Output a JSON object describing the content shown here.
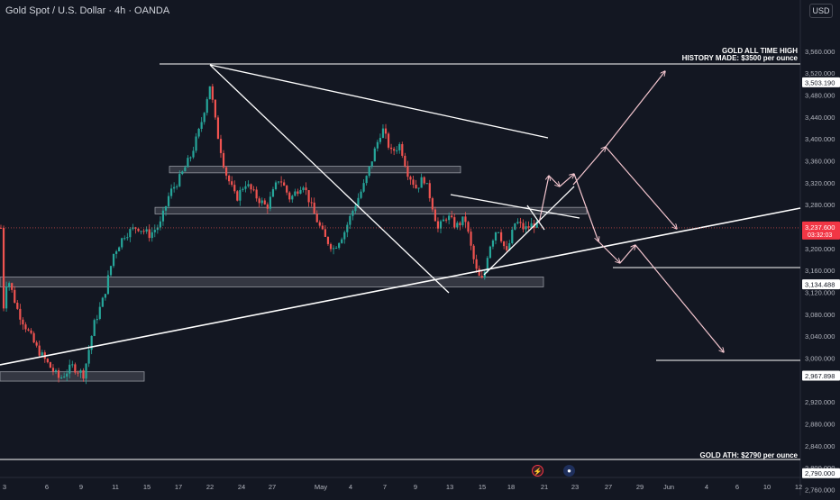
{
  "header": {
    "title": "Gold Spot / U.S. Dollar · 4h · OANDA"
  },
  "currency_button": {
    "label": "USD"
  },
  "colors": {
    "background": "#131722",
    "up": "#26a69a",
    "down": "#ef5350",
    "drawing": "#ffffff",
    "projection": "#f4c6cf",
    "zone_fill": "#5d606b"
  },
  "annotations": {
    "ath_line1": "GOLD ALL TIME HIGH",
    "ath_line2": "HISTORY MADE: $3500 per ounce",
    "ath_old": "GOLD ATH: $2790 per ounce"
  },
  "bottom_icons": [
    {
      "name": "lightning-icon",
      "glyph": "⚡"
    },
    {
      "name": "flag-icon",
      "glyph": "●"
    }
  ],
  "chart_data": {
    "type": "candlestick",
    "title": "Gold Spot / U.S. Dollar · 4h · OANDA",
    "ylim": [
      2760,
      3570
    ],
    "y_ticks": [
      "3,560.000",
      "3,520.000",
      "3,480.000",
      "3,440.000",
      "3,400.000",
      "3,360.000",
      "3,320.000",
      "3,280.000",
      "3,200.000",
      "3,160.000",
      "3,120.000",
      "3,080.000",
      "3,040.000",
      "3,000.000",
      "2,920.000",
      "2,880.000",
      "2,840.000",
      "2,800.000",
      "2,760.000"
    ],
    "x_ticks": [
      "3",
      "6",
      "9",
      "11",
      "15",
      "17",
      "22",
      "24",
      "27",
      "May",
      "4",
      "7",
      "9",
      "13",
      "15",
      "18",
      "21",
      "23",
      "27",
      "29",
      "Jun",
      "4",
      "6",
      "10",
      "12"
    ],
    "price_labels": [
      {
        "text": "3,503.190",
        "value": 3503.19,
        "style": "line"
      },
      {
        "text": "3,237.600",
        "sub": "03:32:03",
        "value": 3237.6,
        "style": "current"
      },
      {
        "text": "3,134.488",
        "value": 3134.488,
        "style": "line"
      },
      {
        "text": "2,967.898",
        "value": 2967.898,
        "style": "line"
      },
      {
        "text": "2,790.000",
        "value": 2790.0,
        "style": "line"
      }
    ],
    "path_anchors": [
      [
        3,
        3080
      ],
      [
        8,
        3150
      ],
      [
        20,
        3085
      ],
      [
        40,
        3020
      ],
      [
        55,
        2985
      ],
      [
        66,
        2962
      ],
      [
        80,
        2985
      ],
      [
        93,
        2970
      ],
      [
        104,
        3060
      ],
      [
        115,
        3110
      ],
      [
        126,
        3190
      ],
      [
        138,
        3225
      ],
      [
        152,
        3240
      ],
      [
        166,
        3225
      ],
      [
        178,
        3245
      ],
      [
        188,
        3300
      ],
      [
        200,
        3330
      ],
      [
        212,
        3370
      ],
      [
        222,
        3420
      ],
      [
        233,
        3500
      ],
      [
        240,
        3420
      ],
      [
        250,
        3340
      ],
      [
        262,
        3290
      ],
      [
        272,
        3320
      ],
      [
        284,
        3295
      ],
      [
        296,
        3275
      ],
      [
        310,
        3330
      ],
      [
        322,
        3290
      ],
      [
        336,
        3320
      ],
      [
        348,
        3265
      ],
      [
        360,
        3220
      ],
      [
        370,
        3200
      ],
      [
        382,
        3230
      ],
      [
        394,
        3280
      ],
      [
        405,
        3320
      ],
      [
        416,
        3380
      ],
      [
        424,
        3420
      ],
      [
        434,
        3375
      ],
      [
        444,
        3390
      ],
      [
        452,
        3340
      ],
      [
        462,
        3310
      ],
      [
        470,
        3330
      ],
      [
        478,
        3290
      ],
      [
        486,
        3235
      ],
      [
        496,
        3260
      ],
      [
        506,
        3240
      ],
      [
        516,
        3255
      ],
      [
        524,
        3190
      ],
      [
        530,
        3150
      ],
      [
        536,
        3140
      ],
      [
        542,
        3200
      ],
      [
        552,
        3240
      ],
      [
        562,
        3190
      ],
      [
        572,
        3250
      ],
      [
        582,
        3235
      ],
      [
        592,
        3245
      ],
      [
        600,
        3237.6
      ]
    ],
    "zones": [
      {
        "x0": 0,
        "x1": 160,
        "top": 2975,
        "bottom": 2958
      },
      {
        "x0": 0,
        "x1": 603,
        "top": 3148,
        "bottom": 3130
      },
      {
        "x0": 172,
        "x1": 651,
        "top": 3275,
        "bottom": 3263
      },
      {
        "x0": 188,
        "x1": 511,
        "top": 3350,
        "bottom": 3338
      }
    ]
  }
}
